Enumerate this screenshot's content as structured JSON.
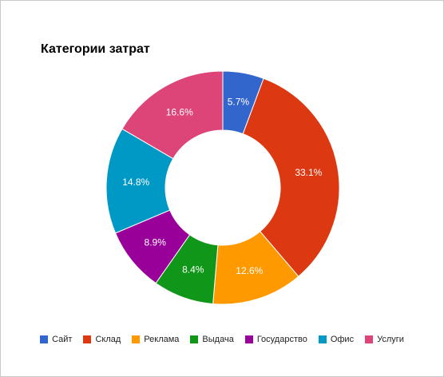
{
  "chart_data": {
    "type": "pie",
    "donut": true,
    "title": "Категории затрат",
    "legend_position": "bottom",
    "slices": [
      {
        "label": "Сайт",
        "value": 5.7,
        "value_label": "5.7%",
        "color": "#3366cc"
      },
      {
        "label": "Склад",
        "value": 33.1,
        "value_label": "33.1%",
        "color": "#dc3912"
      },
      {
        "label": "Реклама",
        "value": 12.6,
        "value_label": "12.6%",
        "color": "#ff9900"
      },
      {
        "label": "Выдача",
        "value": 8.4,
        "value_label": "8.4%",
        "color": "#109618"
      },
      {
        "label": "Государство",
        "value": 8.9,
        "value_label": "8.9%",
        "color": "#990099"
      },
      {
        "label": "Офис",
        "value": 14.8,
        "value_label": "14.8%",
        "color": "#0099c6"
      },
      {
        "label": "Услуги",
        "value": 16.6,
        "value_label": "16.6%",
        "color": "#dd4477"
      }
    ]
  }
}
